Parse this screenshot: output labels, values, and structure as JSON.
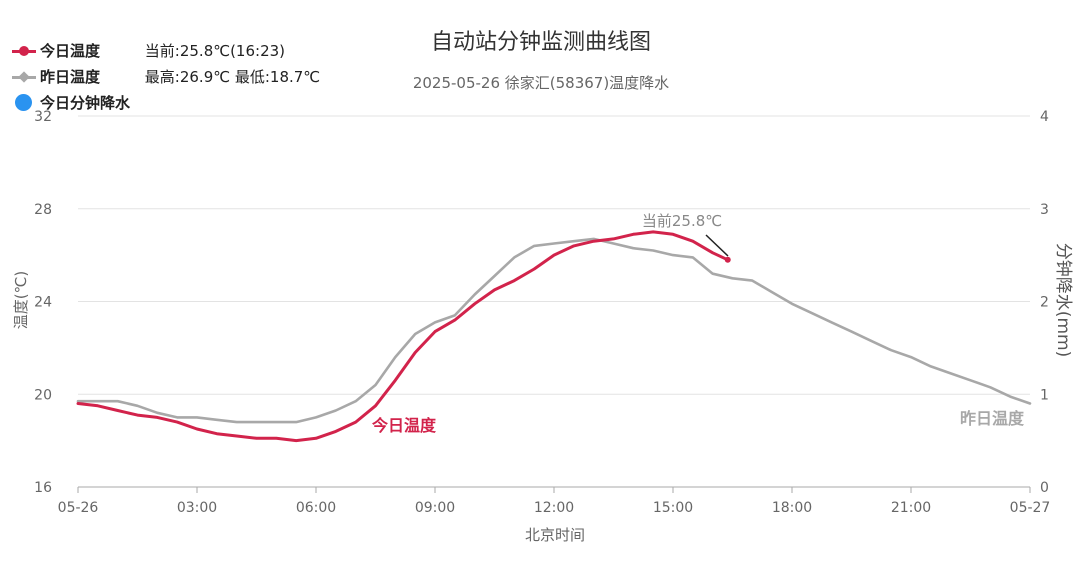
{
  "colors": {
    "today": "#d2234b",
    "yesterday": "#a8a8a8",
    "precip": "#2a93f0",
    "grid": "#e3e3e3",
    "axis_text": "#666666",
    "title": "#333333"
  },
  "legend": {
    "today": {
      "name": "今日温度",
      "stat": "当前:25.8℃(16:23)",
      "icon": "line-dot-marker"
    },
    "yesterday": {
      "name": "昨日温度",
      "stat": "最高:26.9℃ 最低:18.7℃",
      "icon": "line-diamond-marker"
    },
    "precip": {
      "name": "今日分钟降水",
      "icon": "blue-dot-marker"
    }
  },
  "chart_data": {
    "type": "line",
    "title": "自动站分钟监测曲线图",
    "subtitle": "2025-05-26 徐家汇(58367)温度降水",
    "xlabel": "北京时间",
    "ylabel": "温度(℃)",
    "y2label": "分钟降水(mm)",
    "x_tick_labels": [
      "05-26",
      "03:00",
      "06:00",
      "09:00",
      "12:00",
      "15:00",
      "18:00",
      "21:00",
      "05-27"
    ],
    "x_tick_hours": [
      0,
      3,
      6,
      9,
      12,
      15,
      18,
      21,
      24
    ],
    "xlim": [
      0,
      24
    ],
    "ylim": [
      16,
      32
    ],
    "y_ticks": [
      16,
      20,
      24,
      28,
      32
    ],
    "y2lim": [
      0,
      4
    ],
    "y2_ticks": [
      0,
      1,
      2,
      3,
      4
    ],
    "grid": true,
    "legend_position": "top-left",
    "series": [
      {
        "name": "今日温度",
        "x": [
          0,
          0.5,
          1,
          1.5,
          2,
          2.5,
          3,
          3.5,
          4,
          4.5,
          5,
          5.5,
          6,
          6.5,
          7,
          7.5,
          8,
          8.5,
          9,
          9.5,
          10,
          10.5,
          11,
          11.5,
          12,
          12.5,
          13,
          13.5,
          14,
          14.5,
          15,
          15.5,
          16,
          16.38
        ],
        "y": [
          19.6,
          19.5,
          19.3,
          19.1,
          19.0,
          18.8,
          18.5,
          18.3,
          18.2,
          18.1,
          18.1,
          18.0,
          18.1,
          18.4,
          18.8,
          19.5,
          20.6,
          21.8,
          22.7,
          23.2,
          23.9,
          24.5,
          24.9,
          25.4,
          26.0,
          26.4,
          26.6,
          26.7,
          26.9,
          27.0,
          26.9,
          26.6,
          26.1,
          25.8
        ]
      },
      {
        "name": "昨日温度",
        "x": [
          0,
          0.5,
          1,
          1.5,
          2,
          2.5,
          3,
          3.5,
          4,
          4.5,
          5,
          5.5,
          6,
          6.5,
          7,
          7.5,
          8,
          8.5,
          9,
          9.5,
          10,
          10.5,
          11,
          11.5,
          12,
          12.5,
          13,
          13.5,
          14,
          14.5,
          15,
          15.5,
          16,
          16.5,
          17,
          17.5,
          18,
          18.5,
          19,
          19.5,
          20,
          20.5,
          21,
          21.5,
          22,
          22.5,
          23,
          23.5,
          24
        ],
        "y": [
          19.7,
          19.7,
          19.7,
          19.5,
          19.2,
          19.0,
          19.0,
          18.9,
          18.8,
          18.8,
          18.8,
          18.8,
          19.0,
          19.3,
          19.7,
          20.4,
          21.6,
          22.6,
          23.1,
          23.4,
          24.3,
          25.1,
          25.9,
          26.4,
          26.5,
          26.6,
          26.7,
          26.5,
          26.3,
          26.2,
          26.0,
          25.9,
          25.2,
          25.0,
          24.9,
          24.4,
          23.9,
          23.5,
          23.1,
          22.7,
          22.3,
          21.9,
          21.6,
          21.2,
          20.9,
          20.6,
          20.3,
          19.9,
          19.6
        ]
      }
    ],
    "annotations": {
      "current_label": "当前25.8℃",
      "today_label": "今日温度",
      "yesterday_label": "昨日温度"
    }
  }
}
